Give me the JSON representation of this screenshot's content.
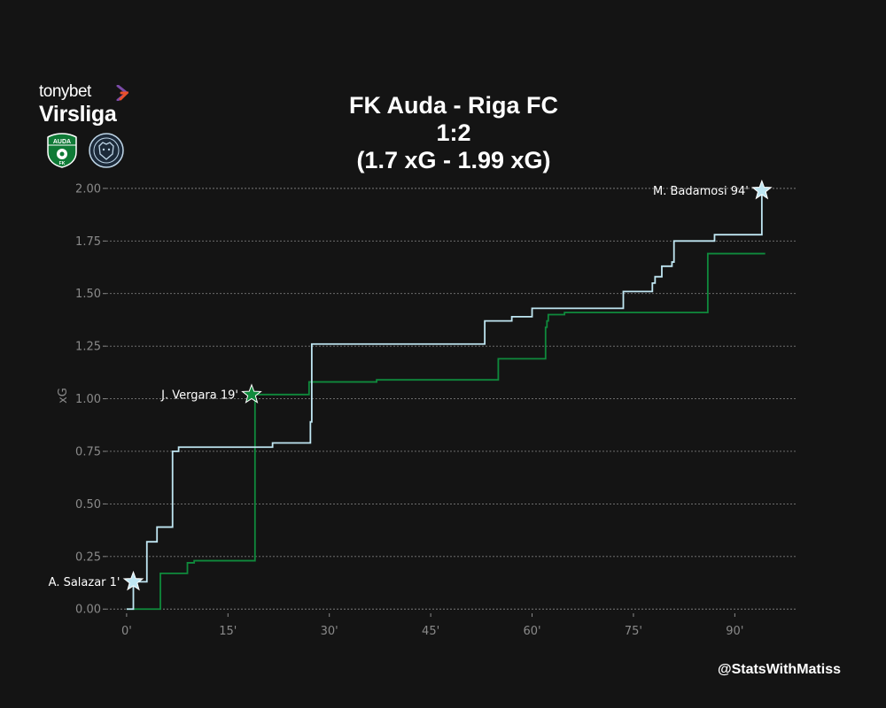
{
  "header": {
    "title": "FK Auda - Riga FC",
    "score": "1:2",
    "xg_line": "(1.7 xG - 1.99 xG)"
  },
  "branding": {
    "league_top": "tonybet",
    "league_bottom": "Virsliga",
    "credit": "@StatsWithMatiss",
    "home_crest_text": "AUDA",
    "home_crest_sub": "FK"
  },
  "colors": {
    "background": "#141414",
    "home": "#0f8a3c",
    "away": "#bfe6f2",
    "grid": "#7a7a7a",
    "tick_text": "#8a8a8a"
  },
  "chart_data": {
    "type": "line",
    "step": true,
    "ylabel": "xG",
    "xlabel": "",
    "xlim": [
      -3,
      99
    ],
    "ylim": [
      -0.02,
      2.05
    ],
    "x_ticks": [
      0,
      15,
      30,
      45,
      60,
      75,
      90
    ],
    "x_tick_labels": [
      "0'",
      "15'",
      "30'",
      "45'",
      "60'",
      "75'",
      "90'"
    ],
    "y_ticks": [
      0,
      0.25,
      0.5,
      0.75,
      1.0,
      1.25,
      1.5,
      1.75,
      2.0
    ],
    "y_tick_labels": [
      "0.00",
      "0.25",
      "0.50",
      "0.75",
      "1.00",
      "1.25",
      "1.50",
      "1.75",
      "2.00"
    ],
    "grid": "horizontal",
    "series": [
      {
        "team": "home",
        "x": [
          0,
          5,
          9,
          10,
          18,
          19,
          27,
          37,
          55,
          62,
          62.2,
          62.4,
          64.8,
          86,
          94.5
        ],
        "y": [
          0,
          0.17,
          0.22,
          0.23,
          0.23,
          1.02,
          1.08,
          1.09,
          1.19,
          1.34,
          1.37,
          1.4,
          1.41,
          1.69,
          1.69
        ]
      },
      {
        "team": "away",
        "x": [
          0,
          1,
          3,
          4.5,
          6.8,
          7.7,
          21.6,
          27.2,
          27.4,
          53,
          57,
          60,
          73.5,
          77.8,
          78.2,
          79.2,
          80.7,
          81,
          87,
          94
        ],
        "y": [
          0,
          0.13,
          0.32,
          0.39,
          0.75,
          0.77,
          0.79,
          0.89,
          1.26,
          1.37,
          1.39,
          1.43,
          1.51,
          1.55,
          1.58,
          1.63,
          1.65,
          1.75,
          1.78,
          1.99
        ]
      }
    ],
    "goals": [
      {
        "team": "away",
        "x": 1,
        "y": 0.13,
        "label": "A. Salazar 1'"
      },
      {
        "team": "home",
        "x": 18.5,
        "y": 1.02,
        "label": "J. Vergara 19'"
      },
      {
        "team": "away",
        "x": 94,
        "y": 1.99,
        "label": "M. Badamosi 94'"
      }
    ]
  }
}
